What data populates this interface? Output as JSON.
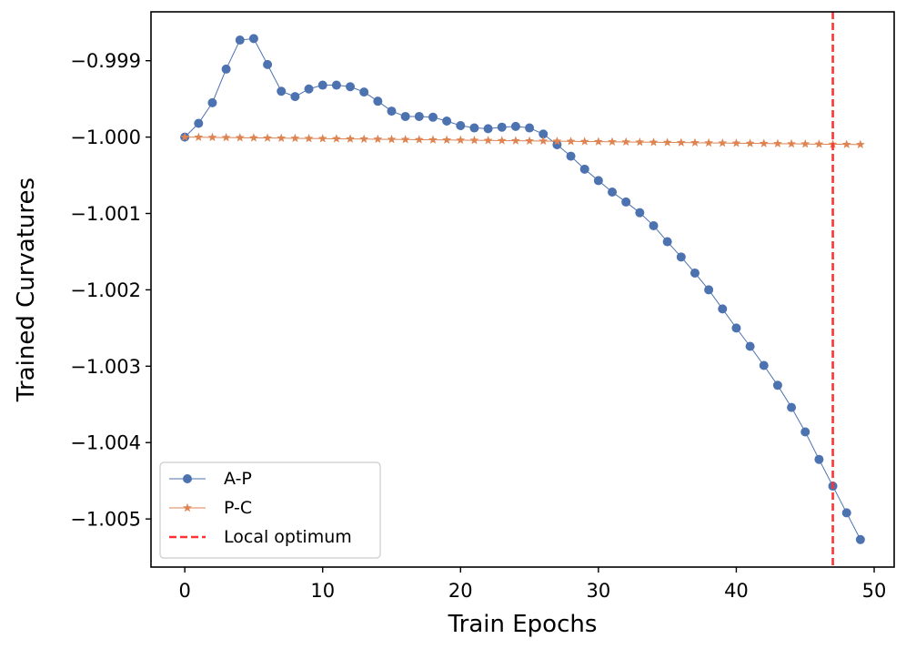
{
  "colors": {
    "ap": "#4c72b0",
    "pc": "#dd8452",
    "local_optimum": "#ff3333",
    "axis": "#000000",
    "background": "#ffffff",
    "legend_border": "#cccccc"
  },
  "chart_data": {
    "type": "line",
    "title": "",
    "xlabel": "Train Epochs",
    "ylabel": "Trained Curvatures",
    "xlim": [
      -2.45,
      51.45
    ],
    "ylim": [
      -1.00563,
      -0.99836
    ],
    "xticks": [
      0,
      10,
      20,
      30,
      40,
      50
    ],
    "xtick_labels": [
      "0",
      "10",
      "20",
      "30",
      "40",
      "50"
    ],
    "yticks": [
      -0.999,
      -1.0,
      -1.001,
      -1.002,
      -1.003,
      -1.004,
      -1.005
    ],
    "ytick_labels": [
      "−0.999",
      "−1.000",
      "−1.001",
      "−1.002",
      "−1.003",
      "−1.004",
      "−1.005"
    ],
    "grid": false,
    "legend_position": "lower-left",
    "series": [
      {
        "name": "A-P",
        "marker": "circle",
        "x": [
          0,
          1,
          2,
          3,
          4,
          5,
          6,
          7,
          8,
          9,
          10,
          11,
          12,
          13,
          14,
          15,
          16,
          17,
          18,
          19,
          20,
          21,
          22,
          23,
          24,
          25,
          26,
          27,
          28,
          29,
          30,
          31,
          32,
          33,
          34,
          35,
          36,
          37,
          38,
          39,
          40,
          41,
          42,
          43,
          44,
          45,
          46,
          47,
          48,
          49
        ],
        "y": [
          -1.0,
          -0.99982,
          -0.99955,
          -0.99911,
          -0.99873,
          -0.99871,
          -0.99905,
          -0.9994,
          -0.99947,
          -0.99937,
          -0.99932,
          -0.99932,
          -0.99934,
          -0.99941,
          -0.99953,
          -0.99966,
          -0.99973,
          -0.99973,
          -0.99974,
          -0.99979,
          -0.99985,
          -0.99988,
          -0.99989,
          -0.99987,
          -0.99986,
          -0.99988,
          -0.99996,
          -1.0001,
          -1.00025,
          -1.00042,
          -1.00057,
          -1.00072,
          -1.00085,
          -1.00099,
          -1.00116,
          -1.00137,
          -1.00157,
          -1.00178,
          -1.002,
          -1.00225,
          -1.0025,
          -1.00274,
          -1.00299,
          -1.00325,
          -1.00354,
          -1.00386,
          -1.00422,
          -1.00457,
          -1.00492,
          -1.00527
        ]
      },
      {
        "name": "P-C",
        "marker": "star",
        "x": [
          0,
          1,
          2,
          3,
          4,
          5,
          6,
          7,
          8,
          9,
          10,
          11,
          12,
          13,
          14,
          15,
          16,
          17,
          18,
          19,
          20,
          21,
          22,
          23,
          24,
          25,
          26,
          27,
          28,
          29,
          30,
          31,
          32,
          33,
          34,
          35,
          36,
          37,
          38,
          39,
          40,
          41,
          42,
          43,
          44,
          45,
          46,
          47,
          48,
          49
        ],
        "y": [
          -1.0,
          -1.000002,
          -1.000004,
          -1.000006,
          -1.000008,
          -1.00001,
          -1.000012,
          -1.000014,
          -1.000016,
          -1.000018,
          -1.00002,
          -1.000022,
          -1.000024,
          -1.000026,
          -1.000028,
          -1.00003,
          -1.000032,
          -1.000034,
          -1.000036,
          -1.000038,
          -1.00004,
          -1.000042,
          -1.000044,
          -1.000046,
          -1.000048,
          -1.00005,
          -1.000052,
          -1.000054,
          -1.000056,
          -1.000058,
          -1.00006,
          -1.000062,
          -1.000064,
          -1.000066,
          -1.000068,
          -1.00007,
          -1.000072,
          -1.000074,
          -1.000076,
          -1.000078,
          -1.00008,
          -1.000082,
          -1.000084,
          -1.000086,
          -1.000088,
          -1.00009,
          -1.000092,
          -1.000094,
          -1.000096,
          -1.000098
        ]
      }
    ],
    "reference_lines": [
      {
        "name": "Local optimum",
        "orientation": "vertical",
        "x": 47,
        "style": "dashed"
      }
    ]
  }
}
